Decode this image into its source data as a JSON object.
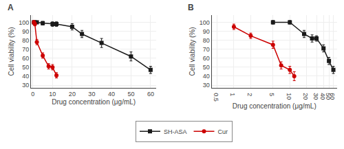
{
  "chart_data": [
    {
      "type": "line",
      "title": "A",
      "xlabel": "Drug concentration (μg/mL)",
      "ylabel": "Cell viability (%)",
      "xlim": [
        -1,
        63
      ],
      "xticks": [
        0,
        10,
        20,
        30,
        40,
        50,
        60
      ],
      "ylim": [
        27,
        108
      ],
      "yticks": [
        30,
        40,
        50,
        60,
        70,
        80,
        90,
        100
      ],
      "legend": "bottom",
      "series": [
        {
          "name": "SH-ASA",
          "color": "#1a1a1a",
          "marker": "square",
          "x": [
            0.5,
            1,
            2,
            5,
            10,
            12,
            20,
            25,
            35,
            50,
            60
          ],
          "values": [
            100,
            100,
            100,
            99,
            98,
            98,
            95,
            87,
            77,
            62,
            47
          ],
          "errors": [
            1.5,
            1.5,
            1.5,
            2,
            2.5,
            2.5,
            3.5,
            4,
            5,
            5,
            4
          ]
        },
        {
          "name": "Cur",
          "color": "#cc0000",
          "marker": "circle",
          "x": [
            0.5,
            1,
            2,
            5,
            8,
            10,
            12
          ],
          "values": [
            100,
            98,
            78,
            63,
            51,
            50,
            41
          ],
          "errors": [
            2,
            2,
            3,
            3,
            3,
            3,
            3
          ]
        }
      ]
    },
    {
      "type": "line",
      "title": "B",
      "log": "x",
      "xlabel": "Drug concentration (μg/mL)",
      "ylabel": "Cell viability (%)",
      "xlim": [
        0.4,
        70
      ],
      "xticks": [
        0.5,
        1,
        2,
        5,
        10,
        20,
        30,
        40,
        50,
        60
      ],
      "ylim": [
        27,
        108
      ],
      "yticks": [
        30,
        40,
        50,
        60,
        70,
        80,
        90,
        100
      ],
      "series": [
        {
          "name": "SH-ASA",
          "color": "#1a1a1a",
          "marker": "square",
          "x": [
            5,
            10,
            18,
            25,
            30,
            40,
            50,
            60
          ],
          "values": [
            100,
            100,
            87,
            82,
            82,
            71,
            57,
            47
          ],
          "errors": [
            2,
            2,
            4,
            4,
            3,
            4,
            4,
            4
          ]
        },
        {
          "name": "Cur",
          "color": "#cc0000",
          "marker": "circle",
          "x": [
            1,
            2,
            5,
            7,
            10,
            12
          ],
          "values": [
            95,
            85,
            75,
            52,
            47,
            40
          ],
          "errors": [
            3,
            3,
            4,
            4,
            4,
            5
          ]
        }
      ]
    }
  ]
}
